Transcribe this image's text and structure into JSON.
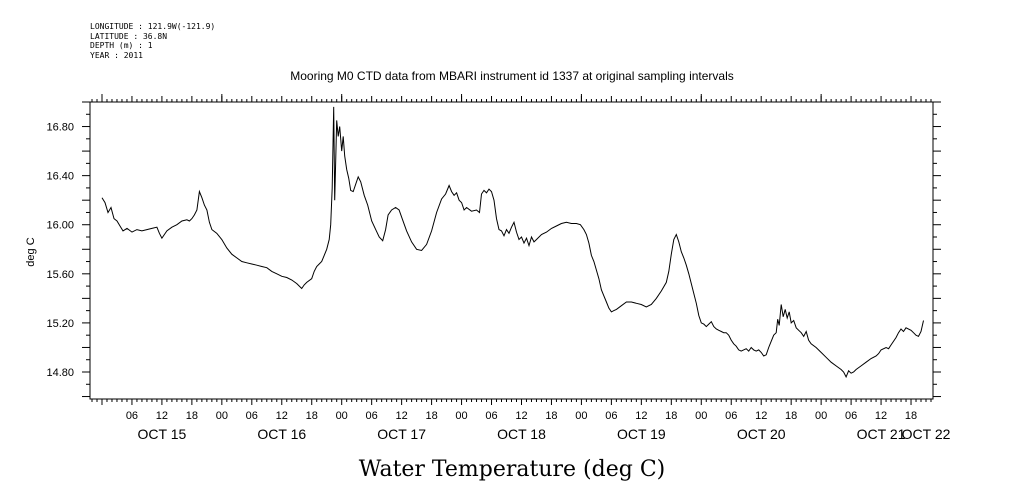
{
  "header": {
    "longitude": "LONGITUDE : 121.9W(-121.9)",
    "latitude": "LATITUDE : 36.8N",
    "depth": "DEPTH (m) : 1",
    "year": "YEAR : 2011"
  },
  "chart_data": {
    "type": "line",
    "title": "Mooring M0 CTD data from MBARI instrument id 1337 at original sampling intervals",
    "xlabel": "Water Temperature (deg C)",
    "ylabel": "deg C",
    "xlim_hours": [
      0,
      165
    ],
    "ylim": [
      14.58,
      17.0
    ],
    "y_ticks": [
      14.8,
      15.2,
      15.6,
      16.0,
      16.4,
      16.8
    ],
    "y_tick_labels": [
      "14.80",
      "15.20",
      "15.60",
      "16.00",
      "16.40",
      "16.80"
    ],
    "x_hour_labels": [
      {
        "h": 6,
        "label": "06"
      },
      {
        "h": 12,
        "label": "12"
      },
      {
        "h": 18,
        "label": "18"
      },
      {
        "h": 24,
        "label": "00"
      },
      {
        "h": 30,
        "label": "06"
      },
      {
        "h": 36,
        "label": "12"
      },
      {
        "h": 42,
        "label": "18"
      },
      {
        "h": 48,
        "label": "00"
      },
      {
        "h": 54,
        "label": "06"
      },
      {
        "h": 60,
        "label": "12"
      },
      {
        "h": 66,
        "label": "18"
      },
      {
        "h": 72,
        "label": "00"
      },
      {
        "h": 78,
        "label": "06"
      },
      {
        "h": 84,
        "label": "12"
      },
      {
        "h": 90,
        "label": "18"
      },
      {
        "h": 96,
        "label": "00"
      },
      {
        "h": 102,
        "label": "06"
      },
      {
        "h": 108,
        "label": "12"
      },
      {
        "h": 114,
        "label": "18"
      },
      {
        "h": 120,
        "label": "00"
      },
      {
        "h": 126,
        "label": "06"
      },
      {
        "h": 132,
        "label": "12"
      },
      {
        "h": 138,
        "label": "18"
      },
      {
        "h": 144,
        "label": "00"
      },
      {
        "h": 150,
        "label": "06"
      },
      {
        "h": 156,
        "label": "12"
      },
      {
        "h": 162,
        "label": "18"
      },
      {
        "h": 168,
        "label": "00"
      }
    ],
    "x_day_labels": [
      {
        "h": 12,
        "label": "OCT 15"
      },
      {
        "h": 36,
        "label": "OCT 16"
      },
      {
        "h": 60,
        "label": "OCT 17"
      },
      {
        "h": 84,
        "label": "OCT 18"
      },
      {
        "h": 108,
        "label": "OCT 19"
      },
      {
        "h": 132,
        "label": "OCT 20"
      },
      {
        "h": 156,
        "label": "OCT 21"
      },
      {
        "h": 165,
        "label": "OCT 22"
      }
    ],
    "series": [
      {
        "color": "#000000",
        "points": [
          [
            0,
            16.22
          ],
          [
            0.6,
            16.18
          ],
          [
            1.2,
            16.1
          ],
          [
            1.8,
            16.14
          ],
          [
            2.4,
            16.05
          ],
          [
            3,
            16.03
          ],
          [
            3.6,
            15.99
          ],
          [
            4.2,
            15.95
          ],
          [
            5,
            15.97
          ],
          [
            6,
            15.94
          ],
          [
            7,
            15.96
          ],
          [
            8,
            15.95
          ],
          [
            9,
            15.96
          ],
          [
            10,
            15.97
          ],
          [
            11,
            15.98
          ],
          [
            11.5,
            15.93
          ],
          [
            12,
            15.89
          ],
          [
            12.5,
            15.92
          ],
          [
            13,
            15.95
          ],
          [
            14,
            15.98
          ],
          [
            15,
            16.0
          ],
          [
            16,
            16.03
          ],
          [
            17,
            16.04
          ],
          [
            17.5,
            16.03
          ],
          [
            18,
            16.05
          ],
          [
            18.5,
            16.08
          ],
          [
            19,
            16.12
          ],
          [
            19.5,
            16.27
          ],
          [
            20,
            16.22
          ],
          [
            20.5,
            16.16
          ],
          [
            21,
            16.12
          ],
          [
            21.5,
            16.02
          ],
          [
            22,
            15.96
          ],
          [
            23,
            15.93
          ],
          [
            24,
            15.88
          ],
          [
            25,
            15.81
          ],
          [
            26,
            15.76
          ],
          [
            27,
            15.73
          ],
          [
            28,
            15.7
          ],
          [
            29,
            15.69
          ],
          [
            30,
            15.68
          ],
          [
            31,
            15.67
          ],
          [
            32,
            15.66
          ],
          [
            33,
            15.65
          ],
          [
            34,
            15.62
          ],
          [
            35,
            15.6
          ],
          [
            36,
            15.58
          ],
          [
            37,
            15.57
          ],
          [
            38,
            15.55
          ],
          [
            39,
            15.52
          ],
          [
            40,
            15.48
          ],
          [
            40.5,
            15.51
          ],
          [
            41,
            15.53
          ],
          [
            42,
            15.56
          ],
          [
            42.5,
            15.62
          ],
          [
            43,
            15.66
          ],
          [
            43.5,
            15.68
          ],
          [
            44,
            15.7
          ],
          [
            44.5,
            15.75
          ],
          [
            45,
            15.8
          ],
          [
            45.5,
            15.88
          ],
          [
            45.8,
            16.0
          ],
          [
            46.1,
            16.3
          ],
          [
            46.4,
            16.96
          ],
          [
            46.6,
            16.2
          ],
          [
            46.8,
            16.52
          ],
          [
            47.0,
            16.85
          ],
          [
            47.3,
            16.72
          ],
          [
            47.6,
            16.8
          ],
          [
            48.0,
            16.6
          ],
          [
            48.3,
            16.72
          ],
          [
            48.6,
            16.56
          ],
          [
            49.0,
            16.45
          ],
          [
            49.4,
            16.38
          ],
          [
            49.8,
            16.28
          ],
          [
            50.3,
            16.27
          ],
          [
            50.8,
            16.33
          ],
          [
            51.3,
            16.39
          ],
          [
            51.8,
            16.35
          ],
          [
            52.5,
            16.24
          ],
          [
            53.2,
            16.16
          ],
          [
            54,
            16.03
          ],
          [
            54.8,
            15.96
          ],
          [
            55.5,
            15.9
          ],
          [
            56.2,
            15.87
          ],
          [
            56.8,
            15.96
          ],
          [
            57.3,
            16.08
          ],
          [
            58,
            16.12
          ],
          [
            58.8,
            16.14
          ],
          [
            59.5,
            16.12
          ],
          [
            60.2,
            16.04
          ],
          [
            61,
            15.95
          ],
          [
            62,
            15.86
          ],
          [
            63,
            15.8
          ],
          [
            64,
            15.79
          ],
          [
            65,
            15.84
          ],
          [
            66,
            15.95
          ],
          [
            67,
            16.1
          ],
          [
            68,
            16.21
          ],
          [
            68.8,
            16.25
          ],
          [
            69.5,
            16.32
          ],
          [
            70,
            16.27
          ],
          [
            70.5,
            16.24
          ],
          [
            71,
            16.26
          ],
          [
            71.5,
            16.2
          ],
          [
            72,
            16.18
          ],
          [
            72.5,
            16.12
          ],
          [
            73,
            16.14
          ],
          [
            74,
            16.11
          ],
          [
            75,
            16.12
          ],
          [
            75.6,
            16.1
          ],
          [
            76.0,
            16.25
          ],
          [
            76.5,
            16.28
          ],
          [
            77,
            16.26
          ],
          [
            77.5,
            16.29
          ],
          [
            78,
            16.27
          ],
          [
            78.5,
            16.2
          ],
          [
            79,
            16.05
          ],
          [
            79.5,
            15.96
          ],
          [
            80,
            15.95
          ],
          [
            80.5,
            15.91
          ],
          [
            81,
            15.96
          ],
          [
            81.5,
            15.93
          ],
          [
            82,
            15.98
          ],
          [
            82.5,
            16.02
          ],
          [
            83,
            15.94
          ],
          [
            83.5,
            15.88
          ],
          [
            84,
            15.9
          ],
          [
            84.5,
            15.85
          ],
          [
            85,
            15.89
          ],
          [
            85.5,
            15.83
          ],
          [
            86,
            15.9
          ],
          [
            86.5,
            15.86
          ],
          [
            87,
            15.88
          ],
          [
            88,
            15.92
          ],
          [
            89,
            15.94
          ],
          [
            90,
            15.97
          ],
          [
            91,
            15.99
          ],
          [
            92,
            16.01
          ],
          [
            93,
            16.02
          ],
          [
            94,
            16.01
          ],
          [
            95,
            16.01
          ],
          [
            95.8,
            16.0
          ],
          [
            96.5,
            15.96
          ],
          [
            97,
            15.92
          ],
          [
            97.5,
            15.85
          ],
          [
            98,
            15.75
          ],
          [
            98.5,
            15.7
          ],
          [
            99,
            15.63
          ],
          [
            99.5,
            15.56
          ],
          [
            100,
            15.47
          ],
          [
            100.5,
            15.42
          ],
          [
            101,
            15.37
          ],
          [
            101.5,
            15.32
          ],
          [
            102,
            15.29
          ],
          [
            102.5,
            15.3
          ],
          [
            103,
            15.31
          ],
          [
            104,
            15.34
          ],
          [
            105,
            15.37
          ],
          [
            106,
            15.37
          ],
          [
            107,
            15.36
          ],
          [
            108,
            15.35
          ],
          [
            109,
            15.33
          ],
          [
            110,
            15.35
          ],
          [
            111,
            15.4
          ],
          [
            112,
            15.46
          ],
          [
            113,
            15.53
          ],
          [
            113.5,
            15.62
          ],
          [
            114,
            15.76
          ],
          [
            114.5,
            15.88
          ],
          [
            115,
            15.92
          ],
          [
            115.5,
            15.86
          ],
          [
            116,
            15.78
          ],
          [
            116.5,
            15.73
          ],
          [
            117,
            15.67
          ],
          [
            117.5,
            15.6
          ],
          [
            118,
            15.52
          ],
          [
            118.5,
            15.44
          ],
          [
            119,
            15.36
          ],
          [
            119.5,
            15.26
          ],
          [
            120,
            15.2
          ],
          [
            120.5,
            15.19
          ],
          [
            121,
            15.17
          ],
          [
            121.5,
            15.19
          ],
          [
            122,
            15.21
          ],
          [
            122.5,
            15.17
          ],
          [
            123,
            15.15
          ],
          [
            123.5,
            15.14
          ],
          [
            124,
            15.13
          ],
          [
            124.5,
            15.12
          ],
          [
            125,
            15.12
          ],
          [
            125.5,
            15.1
          ],
          [
            126,
            15.06
          ],
          [
            126.5,
            15.03
          ],
          [
            127,
            15.01
          ],
          [
            127.5,
            14.98
          ],
          [
            128,
            14.97
          ],
          [
            129,
            14.99
          ],
          [
            129.5,
            14.97
          ],
          [
            130,
            15.0
          ],
          [
            130.5,
            14.98
          ],
          [
            131,
            14.97
          ],
          [
            131.5,
            14.98
          ],
          [
            132,
            14.96
          ],
          [
            132.5,
            14.93
          ],
          [
            133,
            14.94
          ],
          [
            133.5,
            15.0
          ],
          [
            134,
            15.05
          ],
          [
            134.5,
            15.1
          ],
          [
            135,
            15.12
          ],
          [
            135.3,
            15.23
          ],
          [
            135.6,
            15.18
          ],
          [
            136,
            15.35
          ],
          [
            136.4,
            15.25
          ],
          [
            136.8,
            15.31
          ],
          [
            137.2,
            15.24
          ],
          [
            137.6,
            15.29
          ],
          [
            138,
            15.2
          ],
          [
            138.5,
            15.22
          ],
          [
            139,
            15.16
          ],
          [
            139.5,
            15.14
          ],
          [
            140,
            15.12
          ],
          [
            140.5,
            15.09
          ],
          [
            141,
            15.13
          ],
          [
            141.5,
            15.06
          ],
          [
            142,
            15.03
          ],
          [
            143,
            15.0
          ],
          [
            144,
            14.96
          ],
          [
            145,
            14.92
          ],
          [
            146,
            14.88
          ],
          [
            147,
            14.85
          ],
          [
            148,
            14.82
          ],
          [
            148.5,
            14.8
          ],
          [
            149,
            14.76
          ],
          [
            149.5,
            14.81
          ],
          [
            150,
            14.79
          ],
          [
            150.5,
            14.8
          ],
          [
            151,
            14.82
          ],
          [
            152,
            14.85
          ],
          [
            153,
            14.88
          ],
          [
            154,
            14.91
          ],
          [
            155,
            14.93
          ],
          [
            155.5,
            14.95
          ],
          [
            156,
            14.98
          ],
          [
            157,
            15.0
          ],
          [
            157.5,
            14.99
          ],
          [
            158,
            15.02
          ],
          [
            159,
            15.08
          ],
          [
            159.5,
            15.12
          ],
          [
            160,
            15.15
          ],
          [
            160.5,
            15.13
          ],
          [
            161,
            15.16
          ],
          [
            162,
            15.14
          ],
          [
            162.5,
            15.12
          ],
          [
            163,
            15.1
          ],
          [
            163.5,
            15.09
          ],
          [
            164,
            15.13
          ],
          [
            164.5,
            15.22
          ]
        ]
      }
    ]
  }
}
